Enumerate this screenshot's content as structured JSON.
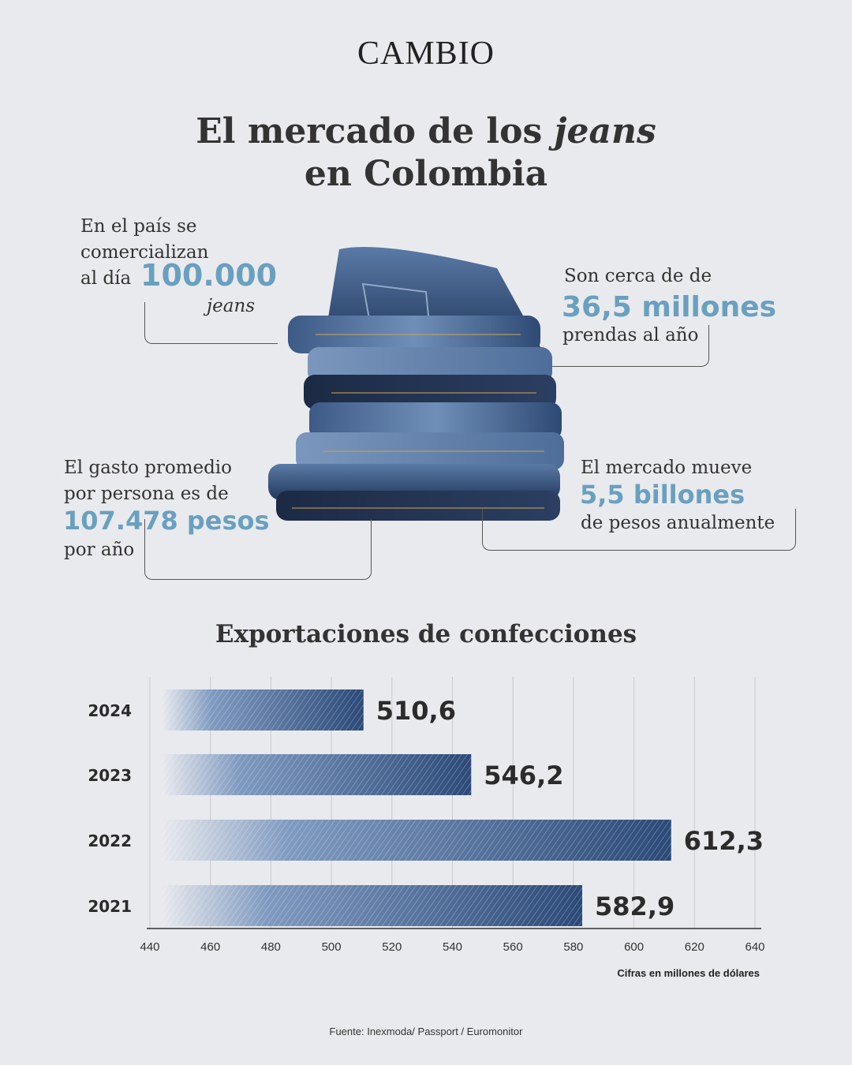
{
  "header": {
    "logo": "CAMBIO"
  },
  "title": {
    "line1_pre": "El mercado de los ",
    "line1_italic": "jeans",
    "line2": "en Colombia"
  },
  "stats": {
    "daily": {
      "text1": "En el país se",
      "text2": "comercializan",
      "text3": "al día",
      "value": "100.000",
      "unit": "jeans"
    },
    "annual": {
      "text1": "Son cerca de de",
      "value": "36,5 millones",
      "text2": "prendas al año"
    },
    "spend": {
      "text1": "El gasto promedio",
      "text2": "por persona es de",
      "value": "107.478 pesos",
      "text3": "por año"
    },
    "market": {
      "text1": "El mercado mueve",
      "value": "5,5 billones",
      "text2": "de pesos anualmente"
    }
  },
  "colors": {
    "accent": "#6aa0bf",
    "denim": "#2c4a78",
    "background": "#e9eaee"
  },
  "icons": {
    "jeans_stack": "jeans-stack-illustration"
  },
  "chart_data": {
    "type": "bar",
    "orientation": "horizontal",
    "title": "Exportaciones de confecciones",
    "categories": [
      "2024",
      "2023",
      "2022",
      "2021"
    ],
    "values": [
      510.6,
      546.2,
      612.3,
      582.9
    ],
    "value_labels": [
      "510,6",
      "546,2",
      "612,3",
      "582,9"
    ],
    "xlim": [
      440,
      640
    ],
    "xticks": [
      440,
      460,
      480,
      500,
      520,
      540,
      560,
      580,
      600,
      620,
      640
    ],
    "grid": true,
    "note": "Cifras en millones de dólares"
  },
  "footer": {
    "source": "Fuente: Inexmoda/ Passport / Euromonitor"
  }
}
